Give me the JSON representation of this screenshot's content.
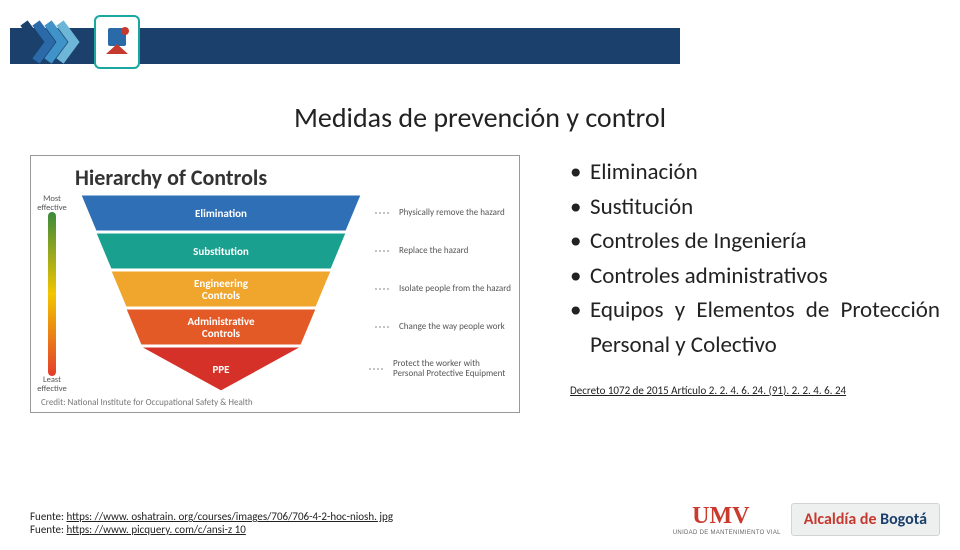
{
  "title": "Medidas de prevención y control",
  "diagram": {
    "heading": "Hierarchy of Controls",
    "most_label": "Most\neffective",
    "least_label": "Least\neffective",
    "credit": "Credit: National Institute for Occupational Safety & Health",
    "levels": [
      {
        "label": "Elimination",
        "fill": "#2f6fb6",
        "tw": 280,
        "bw": 250,
        "desc": "Physically remove the hazard"
      },
      {
        "label": "Substitution",
        "fill": "#19a08e",
        "tw": 250,
        "bw": 220,
        "desc": "Replace the hazard"
      },
      {
        "label": "Engineering Controls",
        "fill": "#f0a62d",
        "tw": 220,
        "bw": 190,
        "desc": "Isolate people from the hazard"
      },
      {
        "label": "Administrative Controls",
        "fill": "#e35a27",
        "tw": 190,
        "bw": 160,
        "desc": "Change the way people work"
      },
      {
        "label": "PPE",
        "fill": "#d53128",
        "tw": 160,
        "bw": 0,
        "desc": "Protect the worker with Personal Protective Equipment"
      }
    ]
  },
  "bullets": [
    "Eliminación",
    "Sustitución",
    "Controles de Ingeniería",
    "Controles administrativos",
    "Equipos y Elementos de Protección Personal y Colectivo"
  ],
  "decree_text": "Decreto 1072 de 2015 Artículo 2. 2. 4. 6. 24. (91).  2. 2. 4. 6. 24",
  "sources": {
    "label": "Fuente:",
    "links": [
      "https: //www. oshatrain. org/courses/images/706/706-4-2-hoc-niosh. jpg",
      "https: //www. picquery. com/c/ansi-z 10"
    ]
  },
  "brand": {
    "umv": "UMV",
    "umv_sub": "UNIDAD DE MANTENIMIENTO VIAL",
    "alcaldia_a": "Alcaldía de ",
    "alcaldia_b": "Bogotá"
  },
  "colors": {
    "header": "#1a406b",
    "accent": "#19a7a0"
  }
}
